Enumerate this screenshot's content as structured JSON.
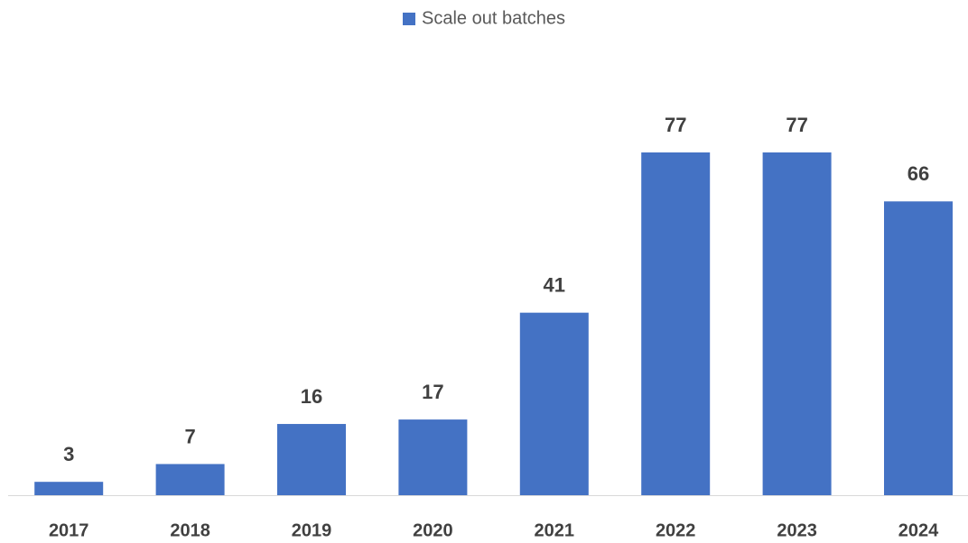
{
  "chart_data": {
    "type": "bar",
    "categories": [
      "2017",
      "2018",
      "2019",
      "2020",
      "2021",
      "2022",
      "2023",
      "2024"
    ],
    "series": [
      {
        "name": "Scale out batches",
        "color": "#4472c4",
        "values": [
          3,
          7,
          16,
          17,
          41,
          77,
          77,
          66
        ]
      }
    ],
    "legend": "top"
  }
}
